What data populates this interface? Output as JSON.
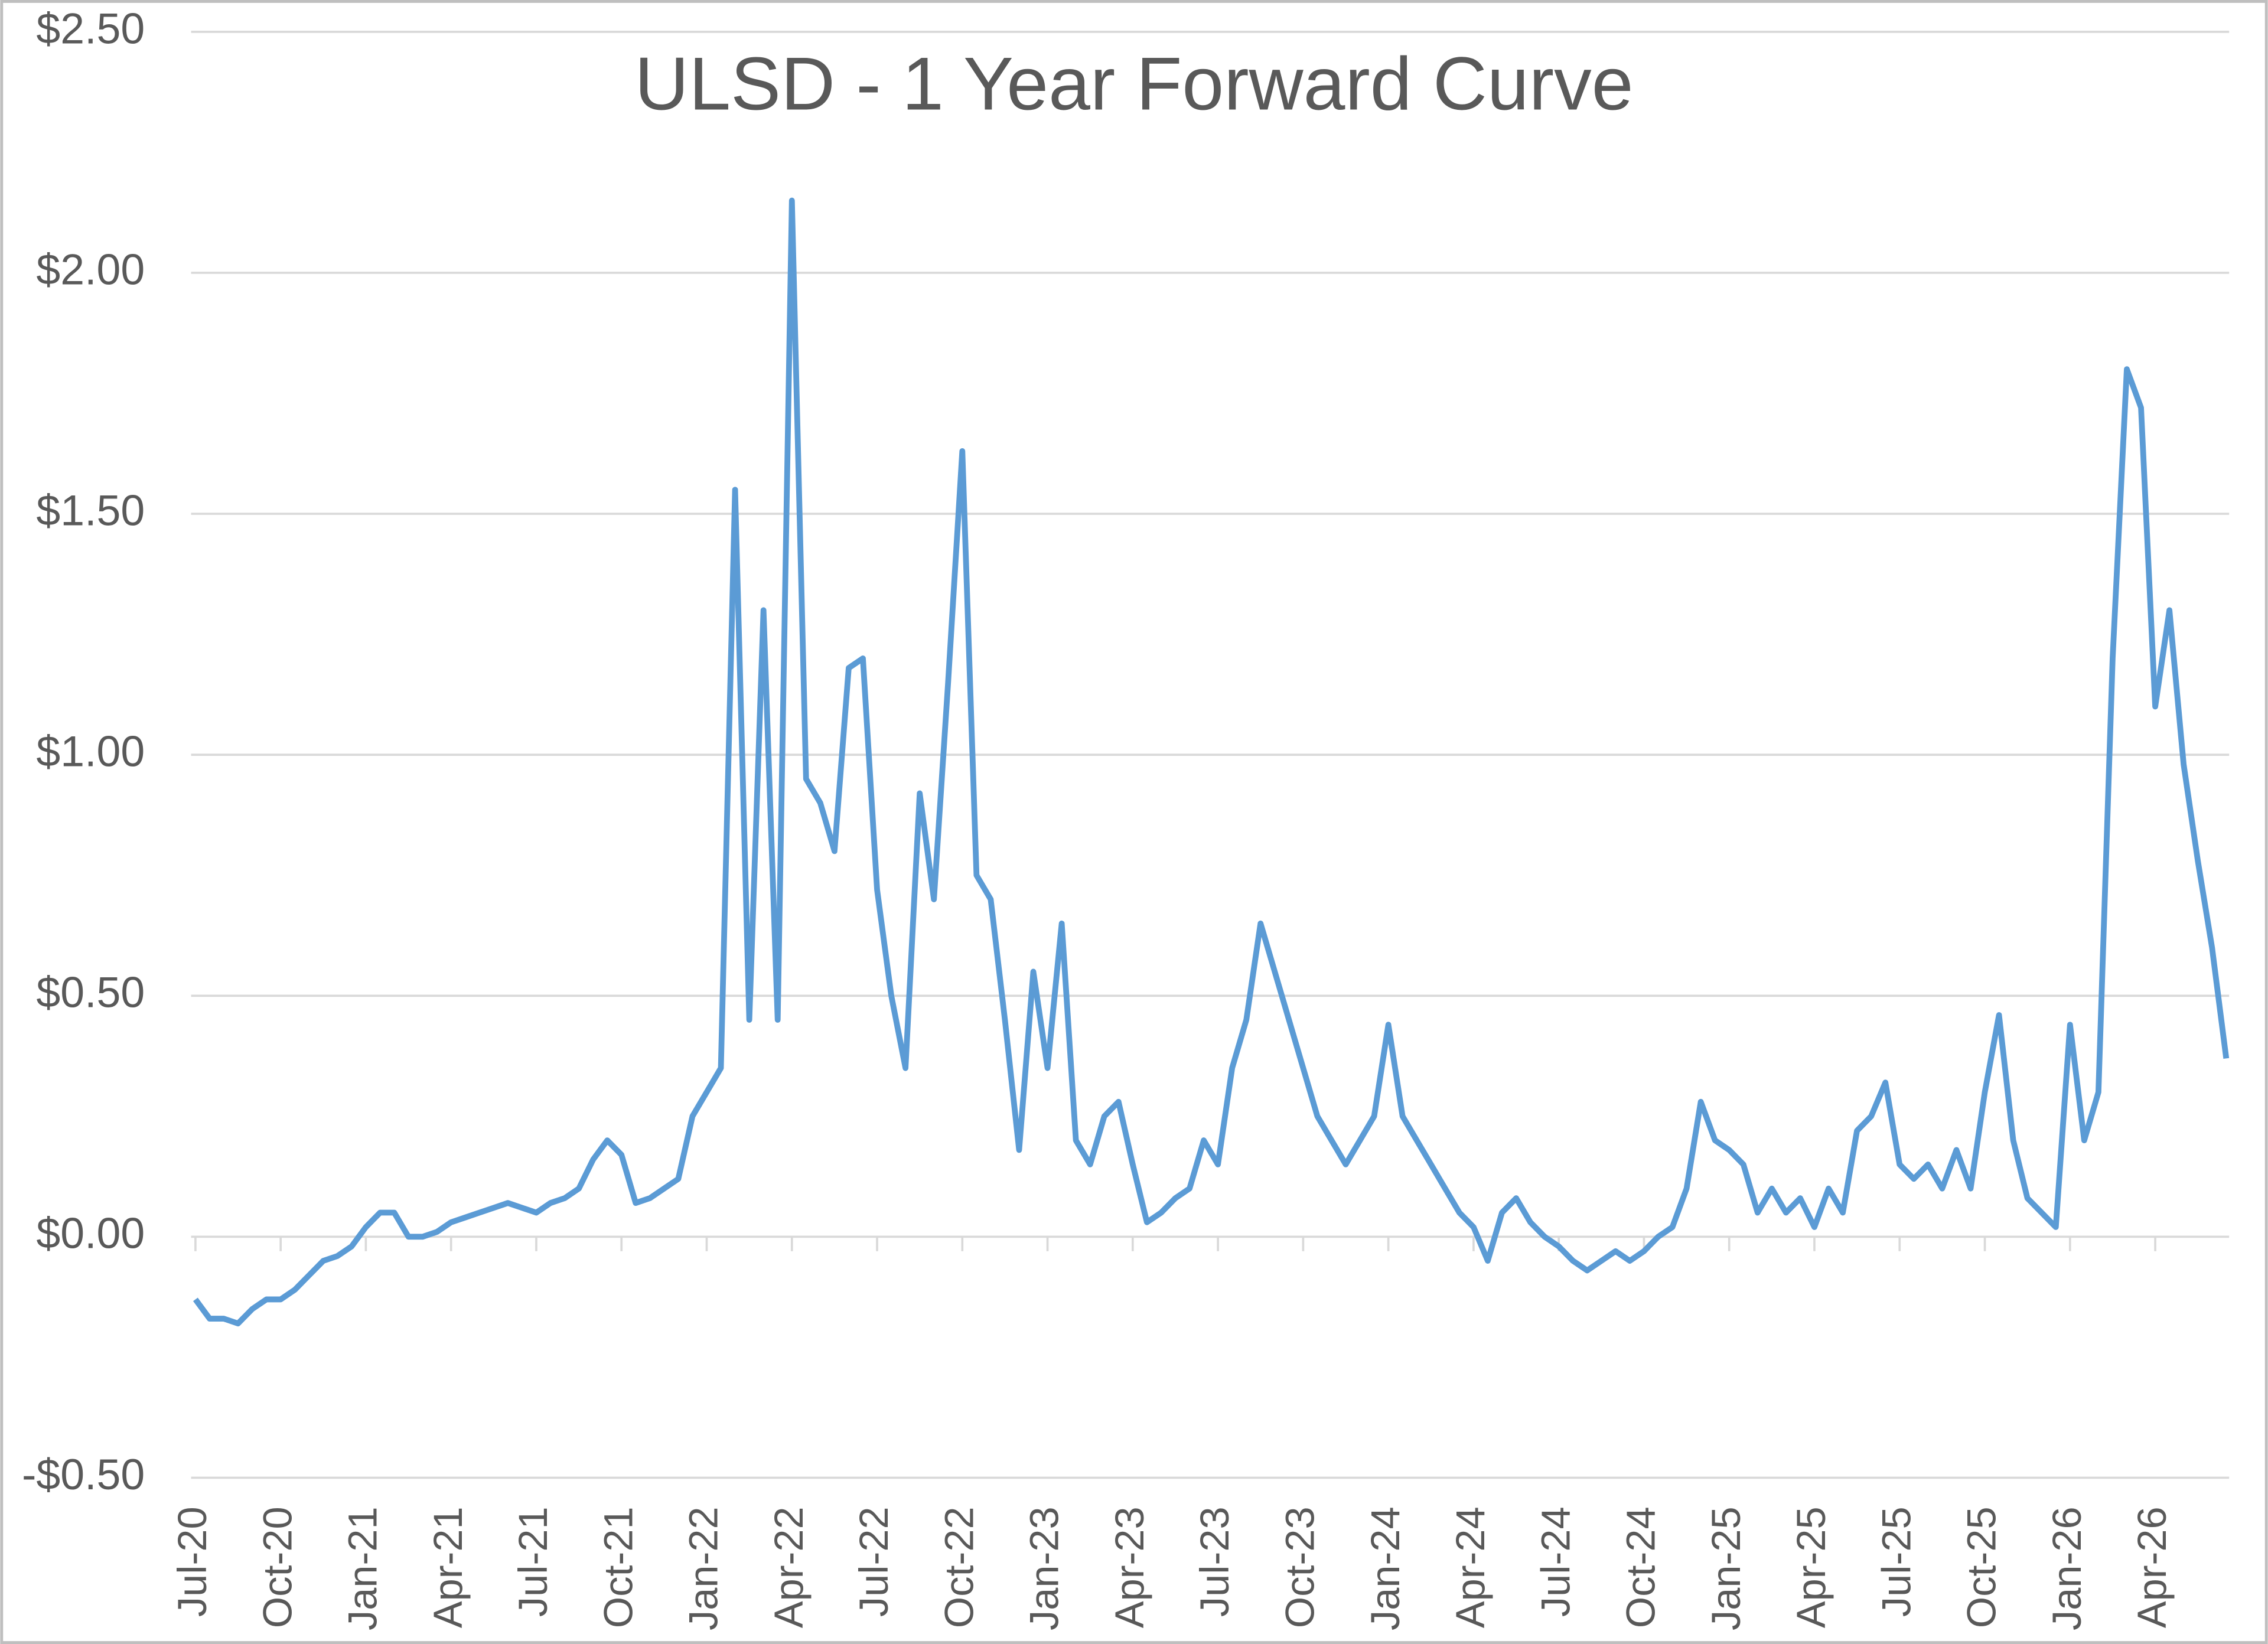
{
  "chart_data": {
    "type": "line",
    "title": "ULSD - 1 Year Forward Curve",
    "categories": [
      "Jul-20",
      null,
      null,
      null,
      null,
      null,
      "Oct-20",
      null,
      null,
      null,
      null,
      null,
      "Jan-21",
      null,
      null,
      null,
      null,
      null,
      "Apr-21",
      null,
      null,
      null,
      null,
      null,
      "Jul-21",
      null,
      null,
      null,
      null,
      null,
      "Oct-21",
      null,
      null,
      null,
      null,
      null,
      "Jan-22",
      null,
      null,
      null,
      null,
      null,
      "Apr-22",
      null,
      null,
      null,
      null,
      null,
      "Jul-22",
      null,
      null,
      null,
      null,
      null,
      "Oct-22",
      null,
      null,
      null,
      null,
      null,
      "Jan-23",
      null,
      null,
      null,
      null,
      null,
      "Apr-23",
      null,
      null,
      null,
      null,
      null,
      "Jul-23",
      null,
      null,
      null,
      null,
      null,
      "Oct-23",
      null,
      null,
      null,
      null,
      null,
      "Jan-24",
      null,
      null,
      null,
      null,
      null,
      "Apr-24",
      null,
      null,
      null,
      null,
      null,
      "Jul-24",
      null,
      null,
      null,
      null,
      null,
      "Oct-24",
      null,
      null,
      null,
      null,
      null,
      "Jan-25",
      null,
      null,
      null,
      null,
      null,
      "Apr-25",
      null,
      null,
      null,
      null,
      null,
      "Jul-25",
      null,
      null,
      null,
      null,
      null,
      "Oct-25",
      null,
      null,
      null,
      null,
      null,
      "Jan-26",
      null,
      null,
      null,
      null,
      null,
      "Apr-26",
      null,
      null,
      null,
      null,
      null
    ],
    "series": [
      {
        "name": "ULSD 1 Year Forward",
        "color": "#5b9bd5",
        "values": [
          -0.13,
          -0.17,
          -0.17,
          -0.18,
          -0.15,
          -0.13,
          -0.13,
          -0.11,
          -0.08,
          -0.05,
          -0.04,
          -0.02,
          0.02,
          0.05,
          0.05,
          0.0,
          0.0,
          0.01,
          0.03,
          0.04,
          0.05,
          0.06,
          0.07,
          0.06,
          0.05,
          0.07,
          0.08,
          0.1,
          0.16,
          0.2,
          0.17,
          0.07,
          0.08,
          0.1,
          0.12,
          0.25,
          0.3,
          0.35,
          1.55,
          0.45,
          1.3,
          0.45,
          2.15,
          0.95,
          0.9,
          0.8,
          1.18,
          1.2,
          0.72,
          0.5,
          0.35,
          0.92,
          0.7,
          1.15,
          1.63,
          0.75,
          0.7,
          0.45,
          0.18,
          0.55,
          0.35,
          0.65,
          0.2,
          0.15,
          0.25,
          0.28,
          0.15,
          0.03,
          0.05,
          0.08,
          0.1,
          0.2,
          0.15,
          0.35,
          0.45,
          0.65,
          0.55,
          0.45,
          0.35,
          0.25,
          0.2,
          0.15,
          0.2,
          0.25,
          0.44,
          0.25,
          0.2,
          0.15,
          0.1,
          0.05,
          0.02,
          -0.05,
          0.05,
          0.08,
          0.03,
          0.0,
          -0.02,
          -0.05,
          -0.07,
          -0.05,
          -0.03,
          -0.05,
          -0.03,
          0.0,
          0.02,
          0.1,
          0.28,
          0.2,
          0.18,
          0.15,
          0.05,
          0.1,
          0.05,
          0.08,
          0.02,
          0.1,
          0.05,
          0.22,
          0.25,
          0.32,
          0.15,
          0.12,
          0.15,
          0.1,
          0.18,
          0.1,
          0.3,
          0.46,
          0.2,
          0.08,
          0.05,
          0.02,
          0.44,
          0.2,
          0.3,
          1.2,
          1.8,
          1.72,
          1.1,
          1.3,
          0.98,
          0.78,
          0.6,
          0.37
        ]
      }
    ],
    "ylim": [
      -0.5,
      2.5
    ],
    "yticks": [
      {
        "value": -0.5,
        "label": "-$0.50"
      },
      {
        "value": 0,
        "label": "$0.00"
      },
      {
        "value": 0.5,
        "label": "$0.50"
      },
      {
        "value": 1,
        "label": "$1.00"
      },
      {
        "value": 1.5,
        "label": "$1.50"
      },
      {
        "value": 2,
        "label": "$2.00"
      },
      {
        "value": 2.5,
        "label": "$2.50"
      }
    ],
    "grid": true
  }
}
